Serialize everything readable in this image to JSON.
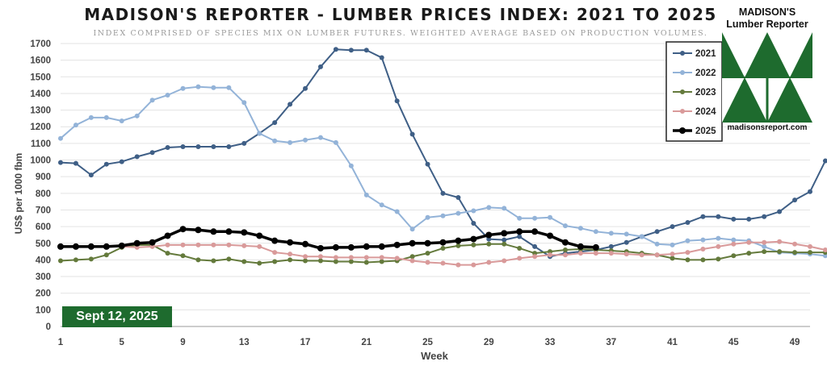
{
  "header": {
    "title": "MADISON'S REPORTER - LUMBER PRICES INDEX: 2021 TO 2025",
    "subtitle": "INDEX COMPRISED OF SPECIES MIX ON LUMBER FUTURES. WEIGHTED AVERAGE BASED ON PRODUCTION VOLUMES."
  },
  "date_badge": "Sept 12, 2025",
  "logo": {
    "line1": "MADISON'S",
    "line2": "Lumber Reporter",
    "url": "madisonsreport.com",
    "color": "#1e6b2e"
  },
  "chart_data": {
    "type": "line",
    "xlabel": "Week",
    "ylabel": "US$ per 1000 fbm",
    "xlim": [
      1,
      50
    ],
    "ylim": [
      0,
      1700
    ],
    "x_ticks": [
      1,
      5,
      9,
      13,
      17,
      21,
      25,
      29,
      33,
      37,
      41,
      45,
      49
    ],
    "y_ticks": [
      0,
      100,
      200,
      300,
      400,
      500,
      600,
      700,
      800,
      900,
      1000,
      1100,
      1200,
      1300,
      1400,
      1500,
      1600,
      1700
    ],
    "grid": "horizontal",
    "legend_position": "top-right",
    "series": [
      {
        "name": "2021",
        "color": "#3f5f86",
        "width": 2,
        "values": [
          985,
          980,
          910,
          975,
          990,
          1020,
          1045,
          1075,
          1080,
          1080,
          1080,
          1080,
          1100,
          1160,
          1225,
          1335,
          1430,
          1560,
          1665,
          1660,
          1660,
          1615,
          1355,
          1155,
          975,
          800,
          775,
          620,
          525,
          520,
          540,
          480,
          420,
          440,
          450,
          460,
          480,
          505,
          540,
          570,
          600,
          625,
          660,
          660,
          645,
          645,
          660,
          690,
          760,
          810,
          995
        ]
      },
      {
        "name": "2022",
        "color": "#93b3d8",
        "width": 2,
        "values": [
          1130,
          1210,
          1255,
          1255,
          1235,
          1265,
          1360,
          1390,
          1430,
          1440,
          1435,
          1435,
          1345,
          1160,
          1115,
          1105,
          1120,
          1135,
          1105,
          965,
          790,
          730,
          690,
          585,
          655,
          665,
          680,
          695,
          715,
          710,
          650,
          650,
          655,
          605,
          590,
          570,
          560,
          555,
          540,
          495,
          490,
          515,
          520,
          530,
          520,
          515,
          480,
          445,
          440,
          435,
          425
        ]
      },
      {
        "name": "2023",
        "color": "#647a3c",
        "width": 2,
        "values": [
          395,
          400,
          405,
          430,
          475,
          490,
          490,
          440,
          425,
          400,
          395,
          405,
          390,
          380,
          390,
          400,
          395,
          395,
          390,
          390,
          385,
          390,
          395,
          420,
          440,
          470,
          485,
          490,
          495,
          495,
          470,
          440,
          450,
          460,
          465,
          460,
          455,
          450,
          440,
          430,
          410,
          400,
          400,
          405,
          425,
          440,
          450,
          450,
          445,
          445,
          445
        ]
      },
      {
        "name": "2024",
        "color": "#d99a9a",
        "width": 2,
        "values": [
          480,
          480,
          480,
          480,
          480,
          475,
          480,
          490,
          490,
          490,
          490,
          490,
          485,
          480,
          445,
          435,
          420,
          420,
          415,
          415,
          415,
          415,
          410,
          395,
          385,
          380,
          370,
          370,
          385,
          395,
          410,
          420,
          430,
          430,
          440,
          440,
          440,
          435,
          430,
          430,
          435,
          445,
          465,
          480,
          495,
          505,
          505,
          510,
          495,
          480,
          460
        ]
      },
      {
        "name": "2025",
        "color": "#000000",
        "width": 3.5,
        "values": [
          480,
          480,
          480,
          480,
          485,
          500,
          505,
          545,
          585,
          580,
          570,
          570,
          565,
          545,
          515,
          505,
          495,
          470,
          475,
          475,
          480,
          480,
          490,
          500,
          500,
          505,
          515,
          525,
          550,
          560,
          570,
          570,
          545,
          505,
          480,
          475
        ]
      }
    ]
  }
}
